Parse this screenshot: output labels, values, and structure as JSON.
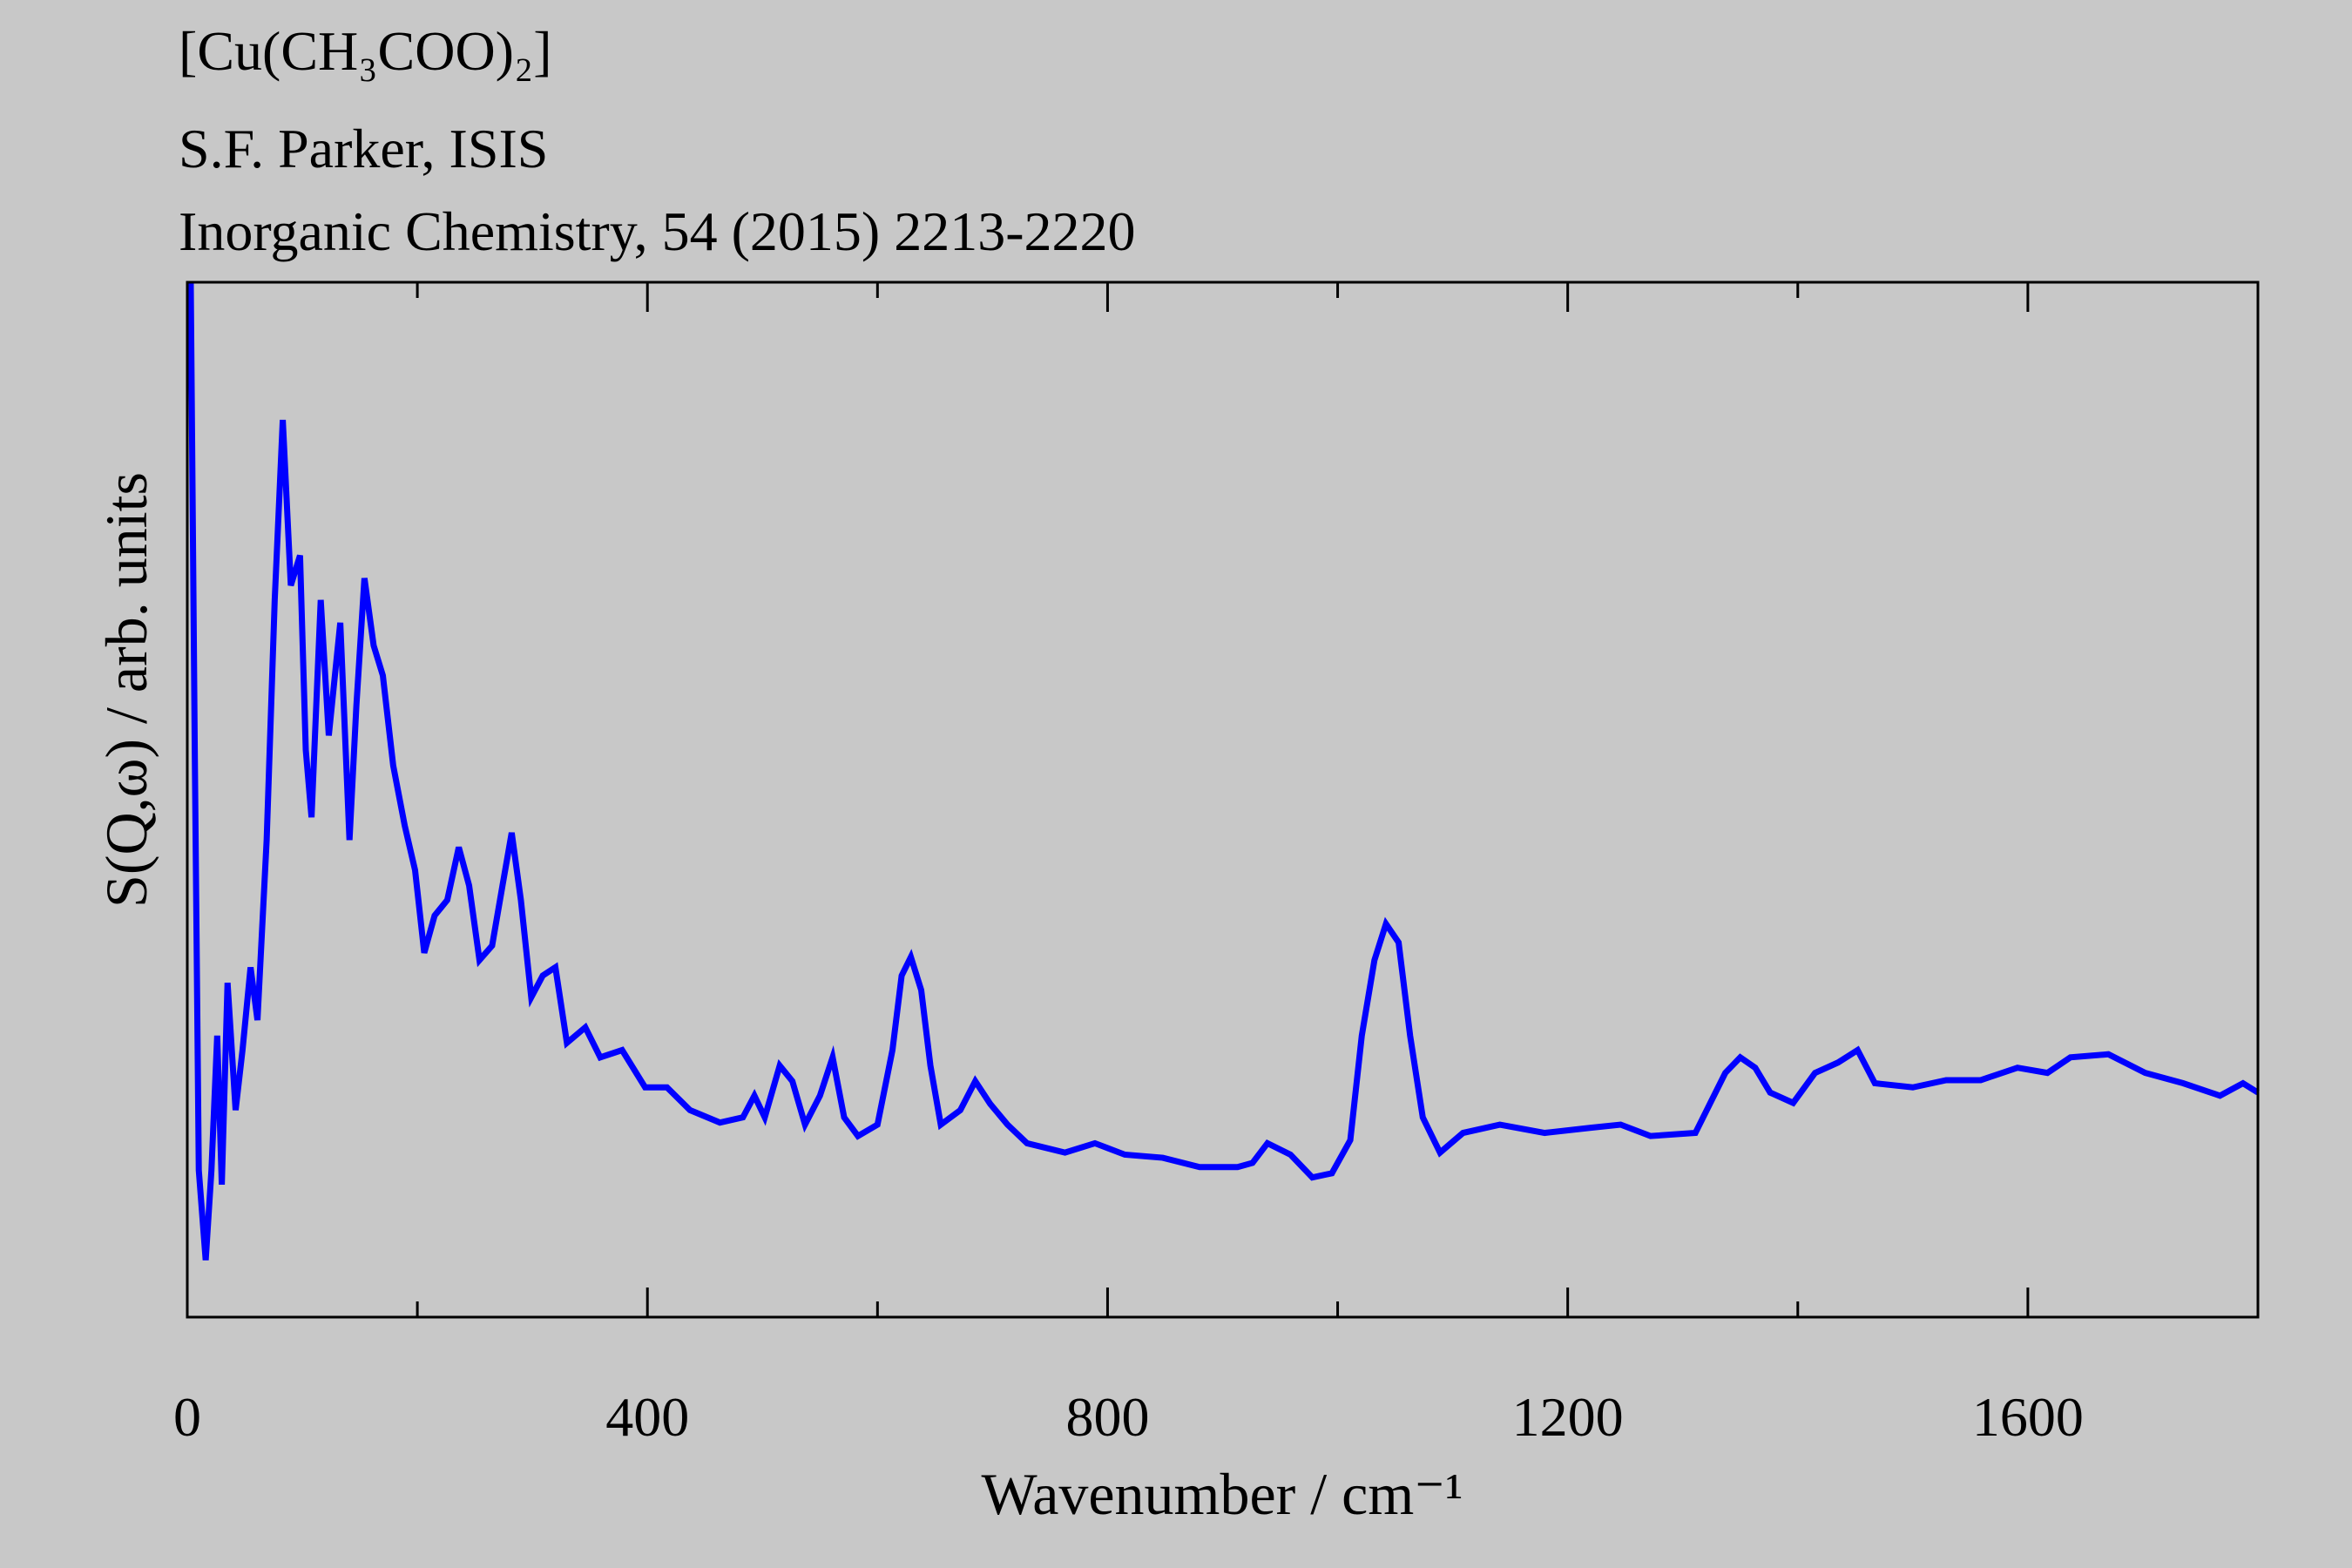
{
  "chart_data": {
    "type": "line",
    "title": "[Cu(CH₃COO)₂]",
    "subtitle": [
      "S.F. Parker, ISIS",
      "Inorganic Chemistry, 54 (2015) 2213-2220"
    ],
    "x_label": "Wavenumber / cm⁻¹",
    "y_label": "S(Q,ω) / arb. units",
    "xlim": [
      0,
      1800
    ],
    "ylim": [
      0,
      100
    ],
    "xticks": [
      0,
      400,
      800,
      1200,
      1600
    ],
    "xticks_minor": [
      200,
      600,
      1000,
      1400,
      1800
    ],
    "series": [
      {
        "color": "#0000ff",
        "x": [
          3,
          6.5,
          10,
          16,
          21,
          26,
          30,
          35,
          42,
          48,
          55,
          61,
          69,
          76,
          83,
          90,
          98,
          103,
          108,
          116,
          123,
          133,
          141,
          147,
          154,
          162,
          170,
          179,
          189,
          198,
          206,
          215,
          226,
          236,
          245,
          254,
          265,
          274,
          282,
          290,
          299,
          309,
          320,
          330,
          346,
          359,
          378,
          398,
          417,
          437,
          463,
          483,
          493,
          502,
          515,
          526,
          537,
          550,
          561,
          571,
          583,
          600,
          613,
          621,
          629,
          638,
          646,
          655,
          672,
          685,
          698,
          713,
          730,
          763,
          789,
          815,
          848,
          880,
          913,
          926,
          939,
          959,
          978,
          995,
          1011,
          1021,
          1032,
          1042,
          1053,
          1063,
          1074,
          1089,
          1109,
          1141,
          1180,
          1220,
          1246,
          1272,
          1311,
          1324,
          1337,
          1350,
          1363,
          1376,
          1396,
          1415,
          1435,
          1452,
          1467,
          1500,
          1529,
          1559,
          1591,
          1617,
          1637,
          1670,
          1702,
          1735,
          1767,
          1787,
          1800
        ],
        "values": [
          100,
          54.8,
          14.2,
          5.5,
          14.2,
          27.2,
          12.8,
          32.3,
          20,
          25.8,
          33.8,
          28.7,
          46.1,
          69.3,
          86.7,
          70.7,
          73.6,
          54.8,
          48.3,
          69.3,
          56.2,
          67.1,
          46.1,
          59.1,
          71.4,
          64.9,
          62.0,
          53.3,
          47.5,
          43.2,
          35.2,
          38.8,
          40.3,
          45.4,
          41.7,
          34.5,
          35.9,
          41.7,
          46.8,
          40.3,
          30.9,
          33.0,
          33.8,
          26.5,
          28.0,
          25.1,
          25.8,
          22.2,
          22.2,
          20.0,
          18.8,
          19.3,
          21.4,
          19.3,
          24.3,
          22.8,
          18.6,
          21.4,
          25.1,
          19.3,
          17.5,
          18.6,
          25.8,
          33.0,
          34.8,
          31.6,
          24.3,
          18.6,
          20.0,
          22.8,
          20.6,
          18.6,
          16.8,
          15.9,
          16.8,
          15.7,
          15.4,
          14.5,
          14.5,
          14.9,
          16.8,
          15.7,
          13.5,
          13.9,
          17.1,
          27.2,
          34.5,
          38.0,
          36.2,
          27.2,
          19.3,
          15.9,
          17.8,
          18.6,
          17.8,
          18.3,
          18.6,
          17.5,
          17.8,
          20.7,
          23.6,
          25.1,
          24.1,
          21.7,
          20.7,
          23.6,
          24.6,
          25.8,
          22.6,
          22.2,
          22.9,
          22.9,
          24.1,
          23.6,
          25.1,
          25.4,
          23.6,
          22.6,
          21.4,
          22.6,
          21.7
        ]
      }
    ]
  }
}
